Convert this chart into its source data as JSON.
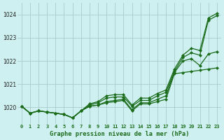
{
  "title": "Graphe pression niveau de la mer (hPa)",
  "bg_color": "#cff0f0",
  "grid_color": "#aacccc",
  "line_color": "#1a6b1a",
  "xlim": [
    -0.5,
    23.5
  ],
  "ylim": [
    1019.3,
    1024.5
  ],
  "yticks": [
    1020,
    1021,
    1022,
    1023,
    1024
  ],
  "xticks": [
    0,
    1,
    2,
    3,
    4,
    5,
    6,
    7,
    8,
    9,
    10,
    11,
    12,
    13,
    14,
    15,
    16,
    17,
    18,
    19,
    20,
    21,
    22,
    23
  ],
  "series": [
    [
      1020.05,
      1019.75,
      1019.85,
      1019.8,
      1019.75,
      1019.7,
      1019.55,
      1019.85,
      1020.05,
      1020.1,
      1020.2,
      1020.25,
      1020.3,
      1019.85,
      1020.15,
      1020.15,
      1020.25,
      1020.35,
      1021.45,
      1021.5,
      1021.55,
      1021.6,
      1021.65,
      1021.7
    ],
    [
      1020.05,
      1019.75,
      1019.85,
      1019.8,
      1019.75,
      1019.7,
      1019.55,
      1019.85,
      1020.05,
      1020.1,
      1020.25,
      1020.3,
      1020.35,
      1019.9,
      1020.2,
      1020.2,
      1020.35,
      1020.5,
      1021.5,
      1022.0,
      1022.1,
      1021.8,
      1022.3,
      1022.4
    ],
    [
      1020.05,
      1019.75,
      1019.85,
      1019.8,
      1019.75,
      1019.7,
      1019.55,
      1019.85,
      1020.1,
      1020.2,
      1020.4,
      1020.45,
      1020.45,
      1020.05,
      1020.3,
      1020.3,
      1020.5,
      1020.65,
      1021.55,
      1022.15,
      1022.35,
      1022.25,
      1023.75,
      1023.95
    ],
    [
      1020.05,
      1019.75,
      1019.85,
      1019.8,
      1019.75,
      1019.7,
      1019.55,
      1019.85,
      1020.15,
      1020.25,
      1020.5,
      1020.55,
      1020.55,
      1020.1,
      1020.4,
      1020.4,
      1020.6,
      1020.75,
      1021.65,
      1022.25,
      1022.55,
      1022.45,
      1023.85,
      1024.05
    ]
  ]
}
